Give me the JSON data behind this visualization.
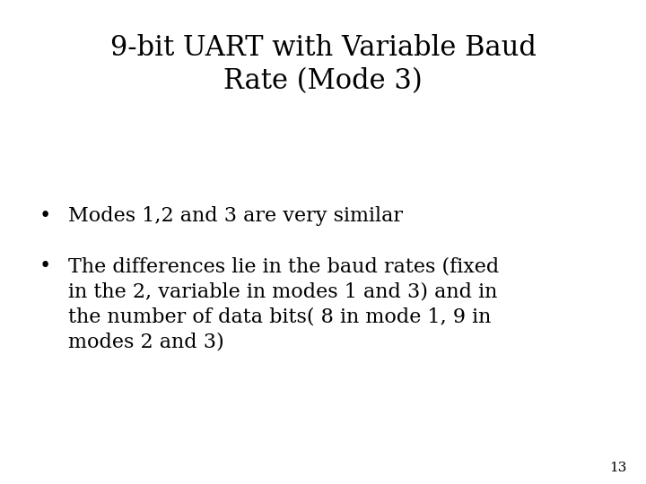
{
  "title_line1": "9-bit UART with Variable Baud",
  "title_line2": "Rate (Mode 3)",
  "bullet1": "Modes 1,2 and 3 are very similar",
  "bullet2_line1": "The differences lie in the baud rates (fixed",
  "bullet2_line2": "in the 2, variable in modes 1 and 3) and in",
  "bullet2_line3": "the number of data bits( 8 in mode 1, 9 in",
  "bullet2_line4": "modes 2 and 3)",
  "page_number": "13",
  "background_color": "#ffffff",
  "text_color": "#000000",
  "title_fontsize": 22,
  "body_fontsize": 16,
  "page_num_fontsize": 11
}
